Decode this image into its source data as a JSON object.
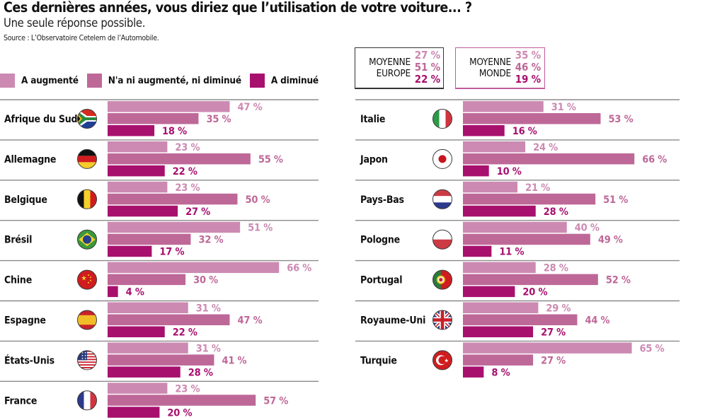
{
  "header": {
    "title": "Ces dernières années, vous diriez que l’utilisation de votre voiture... ?",
    "subtitle": "Une seule réponse possible.",
    "source": "Source : L’Observatoire Cetelem de l’Automobile."
  },
  "legend": [
    {
      "label": "A augmenté",
      "color": "#CC8AB2"
    },
    {
      "label": "N'a ni augmenté, ni diminué",
      "color": "#BE6898"
    },
    {
      "label": "A diminué",
      "color": "#A8106E"
    }
  ],
  "averages": {
    "europe": {
      "label_line1": "MOYENNE",
      "label_line2": "EUROPE",
      "values": [
        "27 %",
        "51 %",
        "22 %"
      ],
      "border_color": "#333333"
    },
    "monde": {
      "label_line1": "MOYENNE",
      "label_line2": "MONDE",
      "values": [
        "35 %",
        "46 %",
        "19 %"
      ],
      "border_color": "#C25A9C"
    }
  },
  "colors": {
    "increased": "#CC8AB2",
    "unchanged": "#BE6898",
    "decreased": "#A8106E",
    "separator": "#8a8a8a"
  },
  "chart_data": {
    "type": "bar",
    "orientation": "horizontal",
    "title": "Ces dernières années, vous diriez que l’utilisation de votre voiture... ?",
    "subtitle": "Une seule réponse possible.",
    "unit": "%",
    "xlim": [
      0,
      100
    ],
    "grid": false,
    "legend_position": "top-left",
    "series_names": [
      "A augmenté",
      "N'a ni augmenté, ni diminué",
      "A diminué"
    ],
    "categories": [
      "Afrique du Sud",
      "Allemagne",
      "Belgique",
      "Brésil",
      "Chine",
      "Espagne",
      "États-Unis",
      "France",
      "Italie",
      "Japon",
      "Pays-Bas",
      "Pologne",
      "Portugal",
      "Royaume-Uni",
      "Turquie"
    ],
    "series": [
      {
        "name": "A augmenté",
        "values": [
          47,
          23,
          23,
          51,
          66,
          31,
          31,
          23,
          31,
          24,
          21,
          40,
          28,
          29,
          65
        ]
      },
      {
        "name": "N'a ni augmenté, ni diminué",
        "values": [
          35,
          55,
          50,
          32,
          30,
          47,
          41,
          57,
          53,
          66,
          51,
          49,
          52,
          44,
          27
        ]
      },
      {
        "name": "A diminué",
        "values": [
          18,
          22,
          27,
          17,
          4,
          22,
          28,
          20,
          16,
          10,
          28,
          11,
          20,
          27,
          8
        ]
      }
    ],
    "flags": [
      "south-africa-flag-icon",
      "germany-flag-icon",
      "belgium-flag-icon",
      "brazil-flag-icon",
      "china-flag-icon",
      "spain-flag-icon",
      "usa-flag-icon",
      "france-flag-icon",
      "italy-flag-icon",
      "japan-flag-icon",
      "netherlands-flag-icon",
      "poland-flag-icon",
      "portugal-flag-icon",
      "uk-flag-icon",
      "turkey-flag-icon"
    ],
    "averages": {
      "Moyenne Europe": [
        27,
        51,
        22
      ],
      "Moyenne Monde": [
        35,
        46,
        19
      ]
    }
  }
}
